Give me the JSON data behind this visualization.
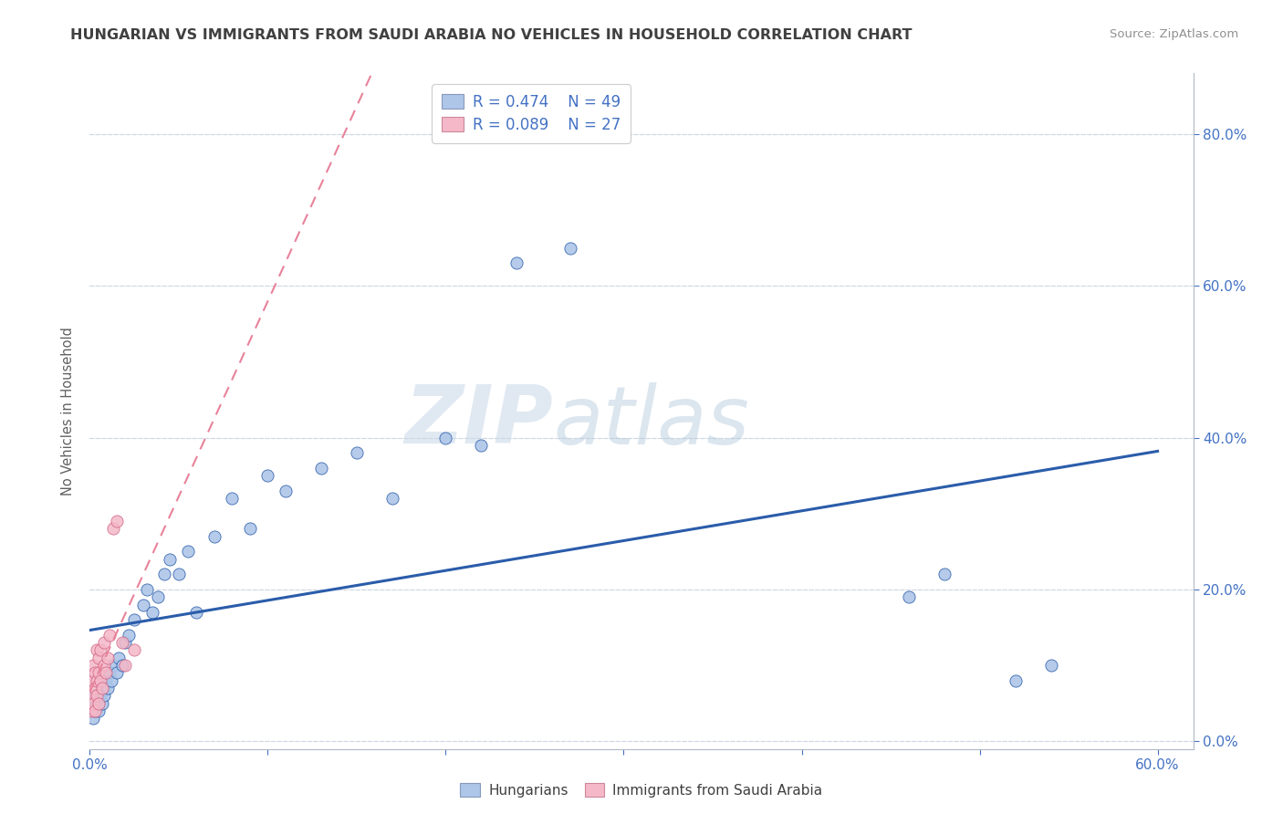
{
  "title": "HUNGARIAN VS IMMIGRANTS FROM SAUDI ARABIA NO VEHICLES IN HOUSEHOLD CORRELATION CHART",
  "source": "Source: ZipAtlas.com",
  "ylabel": "No Vehicles in Household",
  "xlim": [
    0.0,
    0.62
  ],
  "ylim": [
    -0.01,
    0.88
  ],
  "yticks": [
    0.0,
    0.2,
    0.4,
    0.6,
    0.8
  ],
  "ytick_labels": [
    "0.0%",
    "20.0%",
    "40.0%",
    "60.0%",
    "80.0%"
  ],
  "xtick_labels": [
    "0.0%",
    "",
    "",
    "",
    "",
    "",
    "60.0%"
  ],
  "xticks": [
    0.0,
    0.1,
    0.2,
    0.3,
    0.4,
    0.5,
    0.6
  ],
  "r_hungarian": 0.474,
  "n_hungarian": 49,
  "r_saudi": 0.089,
  "n_saudi": 27,
  "color_hungarian": "#aec6e8",
  "color_saudi": "#f4b8c8",
  "line_color_hungarian": "#2a5caa",
  "line_color_saudi": "#e8829a",
  "hungarian_x": [
    0.001,
    0.002,
    0.002,
    0.003,
    0.003,
    0.004,
    0.004,
    0.005,
    0.005,
    0.006,
    0.007,
    0.008,
    0.008,
    0.009,
    0.01,
    0.011,
    0.012,
    0.013,
    0.015,
    0.016,
    0.018,
    0.02,
    0.022,
    0.025,
    0.03,
    0.032,
    0.035,
    0.038,
    0.042,
    0.045,
    0.05,
    0.055,
    0.06,
    0.07,
    0.08,
    0.09,
    0.1,
    0.11,
    0.13,
    0.15,
    0.17,
    0.2,
    0.22,
    0.24,
    0.27,
    0.46,
    0.48,
    0.52,
    0.54
  ],
  "hungarian_y": [
    0.04,
    0.05,
    0.03,
    0.06,
    0.04,
    0.05,
    0.06,
    0.04,
    0.05,
    0.06,
    0.05,
    0.07,
    0.06,
    0.08,
    0.07,
    0.09,
    0.08,
    0.1,
    0.09,
    0.11,
    0.1,
    0.13,
    0.14,
    0.16,
    0.18,
    0.2,
    0.17,
    0.19,
    0.22,
    0.24,
    0.22,
    0.25,
    0.17,
    0.27,
    0.32,
    0.28,
    0.35,
    0.33,
    0.36,
    0.38,
    0.32,
    0.4,
    0.39,
    0.63,
    0.65,
    0.19,
    0.22,
    0.08,
    0.1
  ],
  "saudi_x": [
    0.001,
    0.001,
    0.002,
    0.002,
    0.002,
    0.003,
    0.003,
    0.003,
    0.004,
    0.004,
    0.004,
    0.005,
    0.005,
    0.005,
    0.006,
    0.006,
    0.007,
    0.008,
    0.008,
    0.009,
    0.01,
    0.011,
    0.013,
    0.015,
    0.018,
    0.02,
    0.025
  ],
  "saudi_y": [
    0.04,
    0.06,
    0.05,
    0.08,
    0.1,
    0.04,
    0.07,
    0.09,
    0.06,
    0.08,
    0.12,
    0.05,
    0.09,
    0.11,
    0.08,
    0.12,
    0.07,
    0.1,
    0.13,
    0.09,
    0.11,
    0.14,
    0.28,
    0.29,
    0.13,
    0.1,
    0.12
  ],
  "watermark_zip": "ZIP",
  "watermark_atlas": "atlas",
  "background_color": "#ffffff",
  "grid_color": "#d0d8e4",
  "title_color": "#404040",
  "axis_label_color": "#606060",
  "tick_color": "#4472c4"
}
